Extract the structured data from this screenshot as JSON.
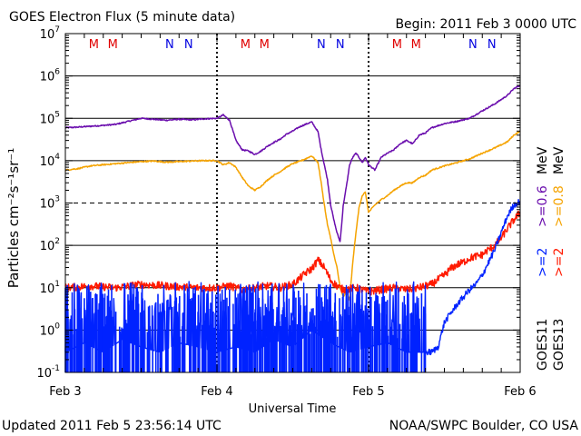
{
  "header": {
    "title": "GOES Electron Flux (5 minute data)",
    "begin": "Begin: 2011 Feb 3 0000 UTC"
  },
  "footer": {
    "updated": "Updated 2011 Feb  5 23:56:14 UTC",
    "credit": "NOAA/SWPC Boulder, CO USA"
  },
  "colors": {
    "goes13_06": "#6a0dad",
    "goes13_08": "#f5a300",
    "goes11_2": "#0022ff",
    "goes13_2": "#ff1a00",
    "M": "#e00000",
    "N": "#0000e0",
    "midnight_M": "#e00000",
    "noon_N": "#0000e0"
  },
  "chart_data": {
    "type": "line",
    "xlabel": "Universal Time",
    "ylabel": "Particles cm⁻²s⁻¹sr⁻¹",
    "x_range_hours": [
      0,
      72
    ],
    "x_ticks": [
      {
        "h": 0,
        "label": "Feb 3"
      },
      {
        "h": 24,
        "label": "Feb 4"
      },
      {
        "h": 48,
        "label": "Feb 5"
      },
      {
        "h": 72,
        "label": "Feb 6"
      }
    ],
    "y_scale": "log",
    "ylim": [
      0.1,
      10000000
    ],
    "y_ticks": [
      {
        "base": "10",
        "exp": "-1"
      },
      {
        "base": "10",
        "exp": "0"
      },
      {
        "base": "10",
        "exp": "1"
      },
      {
        "base": "10",
        "exp": "2"
      },
      {
        "base": "10",
        "exp": "3"
      },
      {
        "base": "10",
        "exp": "4"
      },
      {
        "base": "10",
        "exp": "5"
      },
      {
        "base": "10",
        "exp": "6"
      },
      {
        "base": "10",
        "exp": "7"
      }
    ],
    "markers": [
      {
        "label": "M",
        "h": 4.5
      },
      {
        "label": "M",
        "h": 7.5
      },
      {
        "label": "N",
        "h": 16.5
      },
      {
        "label": "N",
        "h": 19.5
      },
      {
        "label": "M",
        "h": 28.5
      },
      {
        "label": "M",
        "h": 31.5
      },
      {
        "label": "N",
        "h": 40.5
      },
      {
        "label": "N",
        "h": 43.5
      },
      {
        "label": "M",
        "h": 52.5
      },
      {
        "label": "M",
        "h": 55.5
      },
      {
        "label": "N",
        "h": 64.5
      },
      {
        "label": "N",
        "h": 67.5
      }
    ],
    "legend": {
      "goes11": "GOES11",
      "goes13": "GOES13",
      "e2_label": ">=2",
      "e06_label": ">=0.6",
      "e08_label": ">=0.8",
      "unit": "MeV"
    },
    "series": [
      {
        "key": "goes13_06",
        "x": [
          0,
          2,
          4,
          6,
          8,
          10,
          12,
          14,
          16,
          18,
          20,
          22,
          24,
          25,
          26,
          27,
          28,
          29,
          30,
          31,
          32,
          33,
          34,
          35,
          36,
          37,
          38,
          39,
          40,
          40.5,
          41,
          41.5,
          42,
          42.5,
          43,
          43.5,
          44,
          44.5,
          45,
          45.5,
          46,
          46.5,
          47,
          47.5,
          48,
          49,
          50,
          51,
          52,
          53,
          54,
          55,
          56,
          57,
          58,
          60,
          62,
          64,
          66,
          68,
          70,
          71,
          72
        ],
        "y": [
          60000,
          62000,
          65000,
          68000,
          72000,
          85000,
          100000,
          95000,
          90000,
          95000,
          92000,
          97000,
          100000,
          120000,
          90000,
          30000,
          18000,
          17000,
          14000,
          17000,
          22000,
          27000,
          32000,
          42000,
          50000,
          62000,
          72000,
          82000,
          48000,
          18000,
          8000,
          3500,
          900,
          400,
          200,
          120,
          900,
          2500,
          8000,
          12000,
          15000,
          12000,
          9000,
          12000,
          8000,
          6000,
          12000,
          15000,
          18000,
          25000,
          30000,
          25000,
          40000,
          45000,
          60000,
          75000,
          85000,
          100000,
          150000,
          220000,
          350000,
          500000,
          600000
        ]
      },
      {
        "key": "goes13_08",
        "x": [
          0,
          2,
          4,
          6,
          8,
          10,
          12,
          14,
          16,
          18,
          20,
          22,
          24,
          25,
          26,
          27,
          28,
          29,
          30,
          31,
          32,
          33,
          34,
          35,
          36,
          37,
          38,
          39,
          40,
          40.5,
          41,
          41.5,
          42,
          42.5,
          43,
          43.5,
          44,
          44.5,
          45,
          45.5,
          46,
          46.5,
          47,
          47.5,
          48,
          49,
          50,
          51,
          52,
          53,
          54,
          55,
          56,
          57,
          58,
          60,
          62,
          64,
          66,
          68,
          70,
          71,
          72
        ],
        "y": [
          6000,
          6500,
          7500,
          8000,
          8500,
          9000,
          9500,
          9800,
          9200,
          9500,
          9800,
          10000,
          10000,
          8000,
          9000,
          7000,
          4000,
          2500,
          2000,
          2500,
          3500,
          4500,
          5500,
          7000,
          8500,
          9500,
          11000,
          13000,
          9000,
          3000,
          900,
          300,
          150,
          60,
          30,
          10,
          6,
          8,
          5,
          40,
          200,
          800,
          1500,
          1800,
          600,
          900,
          1200,
          1500,
          2000,
          2500,
          3000,
          3000,
          4000,
          4500,
          6000,
          7500,
          9000,
          11000,
          15000,
          20000,
          28000,
          40000,
          50000
        ]
      },
      {
        "key": "goes13_2",
        "x": [
          0,
          4,
          8,
          12,
          16,
          20,
          24,
          26,
          28,
          30,
          32,
          34,
          36,
          37,
          38,
          39,
          40,
          41,
          42,
          43,
          44,
          46,
          48,
          50,
          52,
          54,
          56,
          58,
          60,
          61,
          62,
          63,
          64,
          65,
          66,
          67,
          68,
          69,
          70,
          71,
          72
        ],
        "y": [
          10,
          11,
          10,
          12,
          11,
          10,
          10,
          11,
          9,
          10,
          11,
          10,
          12,
          16,
          22,
          28,
          45,
          30,
          15,
          11,
          9,
          10,
          8,
          9,
          10,
          9,
          10,
          12,
          20,
          28,
          35,
          40,
          50,
          55,
          60,
          80,
          100,
          150,
          250,
          400,
          600
        ]
      },
      {
        "key": "goes11_2",
        "x": [
          0,
          3,
          6,
          9,
          12,
          15,
          18,
          21,
          24,
          27,
          30,
          33,
          36,
          39,
          42,
          45,
          48,
          51,
          54,
          57,
          58,
          59,
          60,
          61,
          62,
          63,
          64,
          65,
          66,
          67,
          68,
          69,
          70,
          71,
          72
        ],
        "y": [
          0.3,
          0.5,
          0.3,
          0.6,
          0.4,
          0.3,
          0.5,
          0.4,
          0.3,
          0.4,
          0.3,
          0.6,
          0.4,
          1.0,
          0.5,
          0.3,
          0.4,
          0.5,
          0.3,
          0.3,
          0.3,
          0.4,
          1.5,
          2.5,
          4,
          6,
          9,
          12,
          20,
          40,
          80,
          200,
          500,
          900,
          1100
        ]
      }
    ]
  }
}
